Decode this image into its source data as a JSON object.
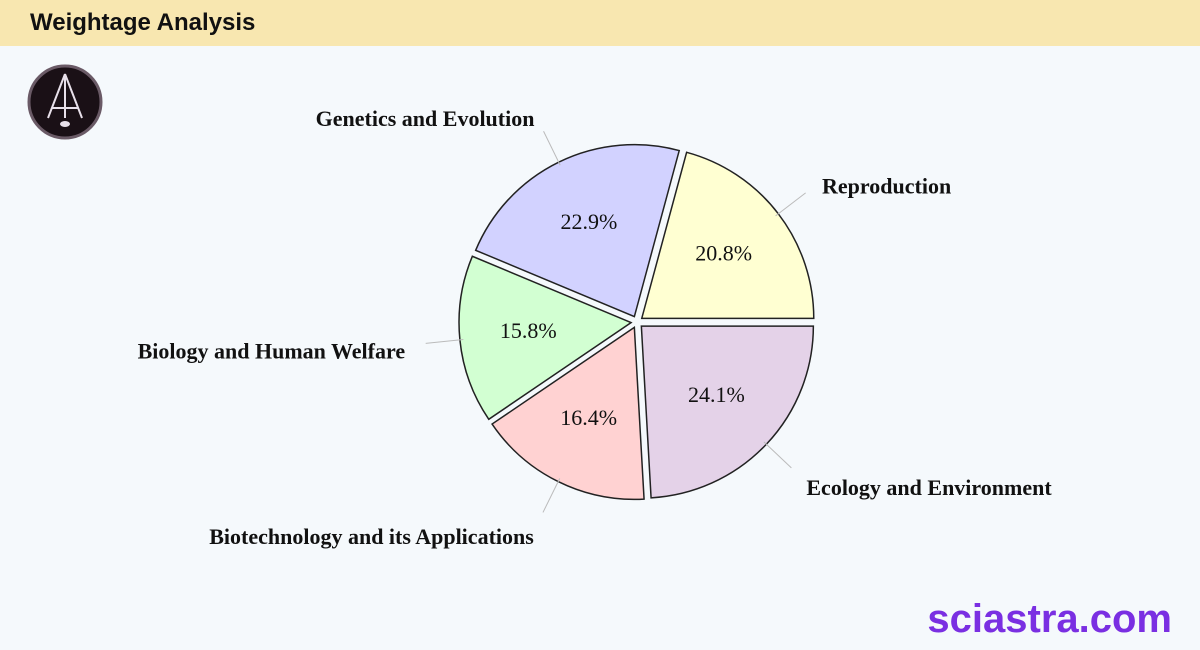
{
  "header": {
    "title": "Weightage Analysis"
  },
  "footer": {
    "brand": "sciastra.com"
  },
  "chart_data": {
    "type": "pie",
    "categories": [
      "Reproduction",
      "Genetics and Evolution",
      "Biology and Human Welfare",
      "Biotechnology and its Applications",
      "Ecology and Environment"
    ],
    "values": [
      20.8,
      22.9,
      15.8,
      16.4,
      24.1
    ],
    "value_labels": [
      "20.8%",
      "22.9%",
      "15.8%",
      "16.4%",
      "24.1%"
    ],
    "colors": [
      "#ffffd2",
      "#d2d2ff",
      "#d2ffd2",
      "#ffd2d2",
      "#e4d2e8"
    ]
  }
}
